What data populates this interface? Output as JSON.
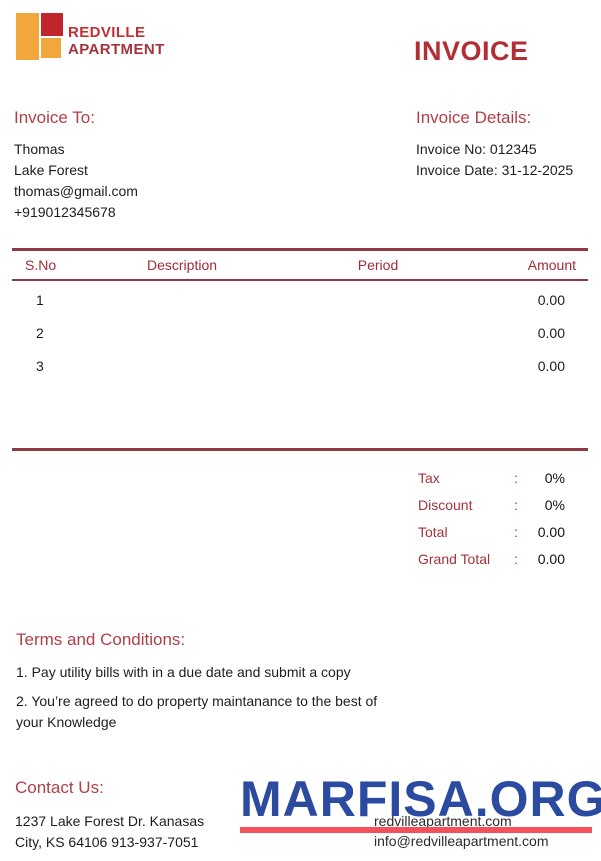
{
  "brand": {
    "name_line1": "REDVILLE",
    "name_line2": "APARTMENT"
  },
  "title": "INVOICE",
  "invoice_to": {
    "heading": "Invoice To:",
    "lines": [
      "Thomas",
      "Lake Forest",
      "thomas@gmail.com",
      "+919012345678"
    ]
  },
  "invoice_details": {
    "heading": "Invoice Details:",
    "invoice_no": "Invoice No: 012345",
    "invoice_date": "Invoice Date: 31-12-2025"
  },
  "table": {
    "headers": [
      "S.No",
      "Description",
      "Period",
      "Amount"
    ],
    "rows": [
      {
        "sno": "1",
        "description": "",
        "period": "",
        "amount": "0.00"
      },
      {
        "sno": "2",
        "description": "",
        "period": "",
        "amount": "0.00"
      },
      {
        "sno": "3",
        "description": "",
        "period": "",
        "amount": "0.00"
      }
    ]
  },
  "totals": [
    {
      "label": "Tax",
      "colon": ":",
      "value": "0%"
    },
    {
      "label": "Discount",
      "colon": ":",
      "value": "0%"
    },
    {
      "label": "Total",
      "colon": ":",
      "value": "0.00"
    },
    {
      "label": "Grand Total",
      "colon": ":",
      "value": "0.00"
    }
  ],
  "terms": {
    "heading": "Terms and Conditions:",
    "items": [
      "1. Pay utility bills with in a due date and submit a copy",
      "2. You’re agreed to do property maintanance to the best of your Knowledge"
    ]
  },
  "contact": {
    "heading": "Contact Us:",
    "lines": [
      "1237 Lake Forest Dr. Kanasas",
      "City, KS 64106 913-937-7051"
    ]
  },
  "footer": {
    "website": "redvilleapartment.com",
    "email": "info@redvilleapartment.com"
  },
  "watermark": {
    "text": "MARFISA.ORG"
  },
  "colors": {
    "logo_orange": "#F2A73D",
    "logo_red": "#C0252B",
    "title_red": "#B22E34",
    "heading_red": "#B04048",
    "rule_maroon": "#8C3A42",
    "watermark_blue": "#2A4B9F",
    "watermark_underline": "#F4515C"
  }
}
